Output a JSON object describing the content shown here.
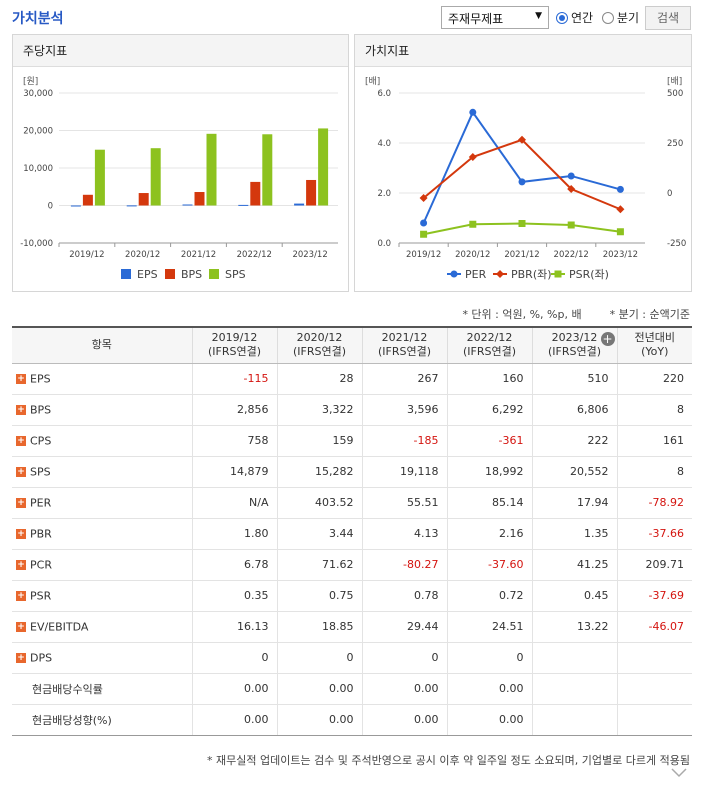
{
  "header": {
    "title": "가치분석",
    "select_value": "주재무제표",
    "radio_annual": "연간",
    "radio_quarter": "분기",
    "search": "검색"
  },
  "left_panel": {
    "title": "주당지표",
    "unit": "[원]",
    "legend": [
      "EPS",
      "BPS",
      "SPS"
    ]
  },
  "right_panel": {
    "title": "가치지표",
    "unit_left": "[배]",
    "unit_right": "[배]",
    "legend": [
      "PER",
      "PBR(좌)",
      "PSR(좌)"
    ]
  },
  "chart_data": [
    {
      "type": "bar",
      "categories": [
        "2019/12",
        "2020/12",
        "2021/12",
        "2022/12",
        "2023/12"
      ],
      "ylim": [
        -10000,
        30000
      ],
      "yticks": [
        "30,000",
        "20,000",
        "10,000",
        "0",
        "-10,000"
      ],
      "ylabel": "[원]",
      "series": [
        {
          "name": "EPS",
          "color": "#2a6ad6",
          "values": [
            -115,
            28,
            267,
            160,
            510
          ]
        },
        {
          "name": "BPS",
          "color": "#d4380d",
          "values": [
            2856,
            3322,
            3596,
            6292,
            6806
          ]
        },
        {
          "name": "SPS",
          "color": "#8dc21f",
          "values": [
            14879,
            15282,
            19118,
            18992,
            20552
          ]
        }
      ]
    },
    {
      "type": "line",
      "categories": [
        "2019/12",
        "2020/12",
        "2021/12",
        "2022/12",
        "2023/12"
      ],
      "ylim_left": [
        0,
        6
      ],
      "ylim_right": [
        -250,
        500
      ],
      "yticks_left": [
        "6.0",
        "4.0",
        "2.0",
        "0.0"
      ],
      "yticks_right": [
        "500",
        "250",
        "0",
        "-250"
      ],
      "series": [
        {
          "name": "PER",
          "axis": "right",
          "color": "#2a6ad6",
          "values": [
            null,
            403.52,
            55.51,
            85.14,
            17.94
          ]
        },
        {
          "name": "PBR(좌)",
          "axis": "left",
          "color": "#d4380d",
          "values": [
            1.8,
            3.44,
            4.13,
            2.16,
            1.35
          ]
        },
        {
          "name": "PSR(좌)",
          "axis": "left",
          "color": "#8dc21f",
          "values": [
            0.35,
            0.75,
            0.78,
            0.72,
            0.45
          ]
        }
      ]
    }
  ],
  "notes": "* 단위 : 억원, %, %p, 배        * 분기 : 순액기준",
  "table": {
    "headers": [
      "항목",
      "2019/12\n(IFRS연결)",
      "2020/12\n(IFRS연결)",
      "2021/12\n(IFRS연결)",
      "2022/12\n(IFRS연결)",
      "2023/12\n(IFRS연결)",
      "전년대비\n(YoY)"
    ],
    "rows": [
      {
        "label": "EPS",
        "plus": true,
        "cells": [
          "-115",
          "28",
          "267",
          "160",
          "510",
          "220"
        ]
      },
      {
        "label": "BPS",
        "plus": true,
        "cells": [
          "2,856",
          "3,322",
          "3,596",
          "6,292",
          "6,806",
          "8"
        ]
      },
      {
        "label": "CPS",
        "plus": true,
        "cells": [
          "758",
          "159",
          "-185",
          "-361",
          "222",
          "161"
        ]
      },
      {
        "label": "SPS",
        "plus": true,
        "cells": [
          "14,879",
          "15,282",
          "19,118",
          "18,992",
          "20,552",
          "8"
        ]
      },
      {
        "label": "PER",
        "plus": true,
        "cells": [
          "N/A",
          "403.52",
          "55.51",
          "85.14",
          "17.94",
          "-78.92"
        ]
      },
      {
        "label": "PBR",
        "plus": true,
        "cells": [
          "1.80",
          "3.44",
          "4.13",
          "2.16",
          "1.35",
          "-37.66"
        ]
      },
      {
        "label": "PCR",
        "plus": true,
        "cells": [
          "6.78",
          "71.62",
          "-80.27",
          "-37.60",
          "41.25",
          "209.71"
        ]
      },
      {
        "label": "PSR",
        "plus": true,
        "cells": [
          "0.35",
          "0.75",
          "0.78",
          "0.72",
          "0.45",
          "-37.69"
        ]
      },
      {
        "label": "EV/EBITDA",
        "plus": true,
        "cells": [
          "16.13",
          "18.85",
          "29.44",
          "24.51",
          "13.22",
          "-46.07"
        ]
      },
      {
        "label": "DPS",
        "plus": true,
        "cells": [
          "0",
          "0",
          "0",
          "0",
          "",
          ""
        ]
      },
      {
        "label": "현금배당수익률",
        "plus": false,
        "cells": [
          "0.00",
          "0.00",
          "0.00",
          "0.00",
          "",
          ""
        ]
      },
      {
        "label": "현금배당성향(%)",
        "plus": false,
        "cells": [
          "0.00",
          "0.00",
          "0.00",
          "0.00",
          "",
          ""
        ]
      }
    ]
  },
  "footnote": "* 재무실적 업데이트는 검수 및 주석반영으로 공시 이후 약 일주일 정도 소요되며, 기업별로 다르게 적용됨"
}
